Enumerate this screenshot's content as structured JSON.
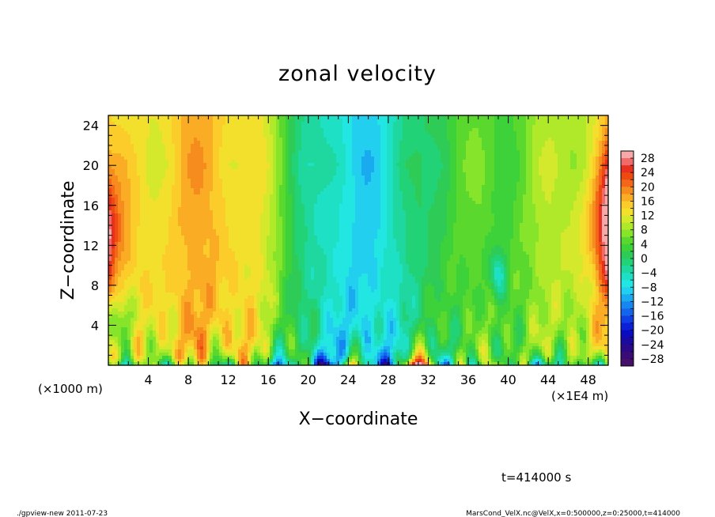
{
  "chart_data": {
    "type": "heatmap",
    "title": "zonal velocity",
    "xlabel": "X−coordinate",
    "ylabel": "Z−coordinate",
    "x_unit_left": "(×1000 m)",
    "x_unit_right": "(×1E4 m)",
    "xlim": [
      0,
      50
    ],
    "ylim": [
      0,
      25
    ],
    "x_ticks": [
      "4",
      "8",
      "12",
      "16",
      "20",
      "24",
      "28",
      "32",
      "36",
      "40",
      "44",
      "48"
    ],
    "x_tick_values": [
      4,
      8,
      12,
      16,
      20,
      24,
      28,
      32,
      36,
      40,
      44,
      48
    ],
    "y_ticks": [
      "4",
      "8",
      "12",
      "16",
      "20",
      "24"
    ],
    "y_tick_values": [
      4,
      8,
      12,
      16,
      20,
      24
    ],
    "colorbar": {
      "labels": [
        "28",
        "24",
        "20",
        "16",
        "12",
        "8",
        "4",
        "0",
        "−4",
        "−8",
        "−12",
        "−16",
        "−20",
        "−24",
        "−28"
      ],
      "levels": [
        30,
        28,
        26,
        24,
        22,
        20,
        18,
        16,
        14,
        12,
        10,
        8,
        6,
        4,
        2,
        0,
        -2,
        -4,
        -6,
        -8,
        -10,
        -12,
        -14,
        -16,
        -18,
        -20,
        -22,
        -24,
        -26,
        -28,
        -30
      ],
      "colors": [
        "#f7a8a8",
        "#f06a6a",
        "#e83020",
        "#ee4a10",
        "#f4661a",
        "#f78c1e",
        "#f9ac24",
        "#fbcc2a",
        "#f2e02c",
        "#d4e82c",
        "#b0e82a",
        "#86e42a",
        "#5ad82e",
        "#3ed23a",
        "#2ecc56",
        "#22d276",
        "#1ed8a0",
        "#1ee0c4",
        "#22e6e2",
        "#22cfee",
        "#1aaaf0",
        "#1686f0",
        "#1464ec",
        "#1040e4",
        "#0c20d8",
        "#0a0cc0",
        "#1a0aa0",
        "#2a0a88",
        "#3a0c76",
        "#46106a"
      ]
    },
    "vmin": -30,
    "vmax": 30
  },
  "annotations": {
    "time": "t=414000 s",
    "footer_left": "./gpview-new   2011-07-23",
    "footer_right": "MarsCond_VelX.nc@VelX,x=0:500000,z=0:25000,t=414000"
  }
}
